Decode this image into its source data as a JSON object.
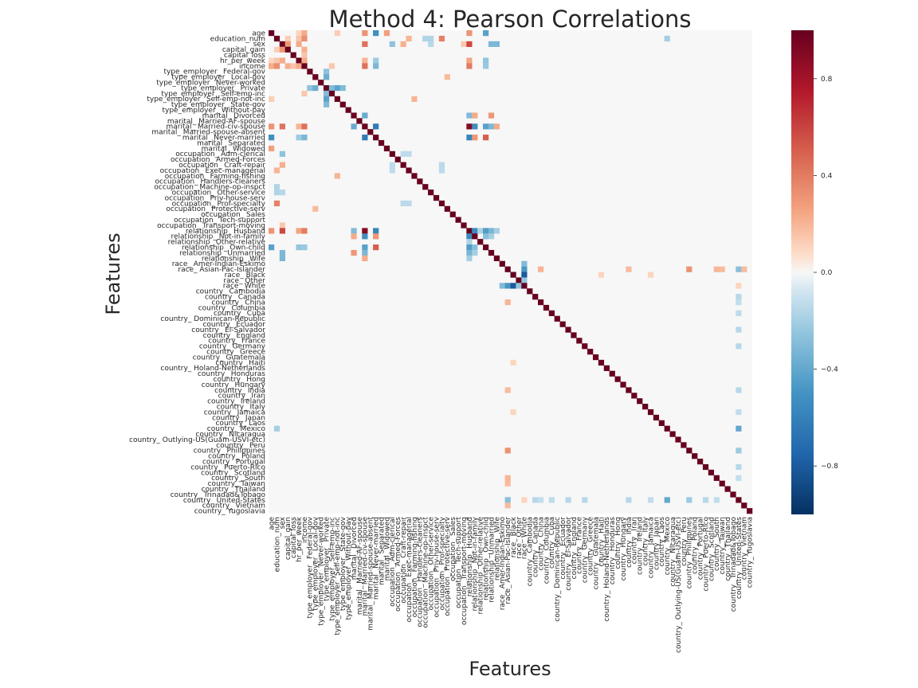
{
  "chart_data": {
    "type": "heatmap",
    "title": "Method 4: Pearson Correlations",
    "xlabel": "Features",
    "ylabel": "Features",
    "colorbar": {
      "range": [
        -1,
        1
      ],
      "ticks": [
        "0.8",
        "0.4",
        "0.0",
        "−0.4",
        "−0.8"
      ],
      "colormap": "RdBu_r",
      "colors": {
        "low": "#053061",
        "mid": "#f7f7f7",
        "high": "#67001f"
      }
    },
    "features": [
      "age",
      "education_num",
      "sex",
      "capital_gain",
      "capital_loss",
      "hr_per_week",
      "income",
      "type_employer_ Federal-gov",
      "type_employer_ Local-gov",
      "type_employer_ Never-worked",
      "type_employer_ Private",
      "type_employer_ Self-emp-inc",
      "type_employer_ Self-emp-not-inc",
      "type_employer_ State-gov",
      "type_employer_ Without-pay",
      "marital_ Divorced",
      "marital_ Married-AF-spouse",
      "marital_ Married-civ-spouse",
      "marital_ Married-spouse-absent",
      "marital_ Never-married",
      "marital_ Separated",
      "marital_ Widowed",
      "occupation_ Adm-clerical",
      "occupation_ Armed-Forces",
      "occupation_ Craft-repair",
      "occupation_ Exec-managerial",
      "occupation_ Farming-fishing",
      "occupation_ Handlers-cleaners",
      "occupation_ Machine-op-inspct",
      "occupation_ Other-service",
      "occupation_ Priv-house-serv",
      "occupation_ Prof-specialty",
      "occupation_ Protective-serv",
      "occupation_ Sales",
      "occupation_ Tech-support",
      "occupation_ Transport-moving",
      "relationship_ Husband",
      "relationship_ Not-in-family",
      "relationship_ Other-relative",
      "relationship_ Own-child",
      "relationship_ Unmarried",
      "relationship_ Wife",
      "race_ Amer-Indian-Eskimo",
      "race_ Asian-Pac-Islander",
      "race_ Black",
      "race_ Other",
      "race_ White",
      "country_ Cambodia",
      "country_ Canada",
      "country_ China",
      "country_ Columbia",
      "country_ Cuba",
      "country_ Dominican-Republic",
      "country_ Ecuador",
      "country_ El-Salvador",
      "country_ England",
      "country_ France",
      "country_ Germany",
      "country_ Greece",
      "country_ Guatemala",
      "country_ Haiti",
      "country_ Holand-Netherlands",
      "country_ Honduras",
      "country_ Hong",
      "country_ Hungary",
      "country_ India",
      "country_ Iran",
      "country_ Ireland",
      "country_ Italy",
      "country_ Jamaica",
      "country_ Japan",
      "country_ Laos",
      "country_ Mexico",
      "country_ Nicaragua",
      "country_ Outlying-US(Guam-USVI-etc)",
      "country_ Peru",
      "country_ Philippines",
      "country_ Poland",
      "country_ Portugal",
      "country_ Puerto-Rico",
      "country_ Scotland",
      "country_ South",
      "country_ Taiwan",
      "country_ Thailand",
      "country_ Trinadad&Tobago",
      "country_ United-States",
      "country_ Vietnam",
      "country_ Yugoslavia"
    ],
    "diagonal_value": 1.0,
    "notable_correlations": [
      {
        "a": "sex",
        "b": "capital_gain",
        "value": 0.3
      },
      {
        "a": "education_num",
        "b": "income",
        "value": 0.33
      },
      {
        "a": "age",
        "b": "income",
        "value": 0.23
      },
      {
        "a": "hr_per_week",
        "b": "income",
        "value": 0.23
      },
      {
        "a": "sex",
        "b": "hr_per_week",
        "value": 0.23
      },
      {
        "a": "age",
        "b": "marital_ Married-civ-spouse",
        "value": 0.31
      },
      {
        "a": "age",
        "b": "marital_ Never-married",
        "value": -0.53
      },
      {
        "a": "age",
        "b": "marital_ Widowed",
        "value": 0.27
      },
      {
        "a": "age",
        "b": "relationship_ Own-child",
        "value": -0.43
      },
      {
        "a": "sex",
        "b": "marital_ Married-civ-spouse",
        "value": 0.43
      },
      {
        "a": "sex",
        "b": "relationship_ Husband",
        "value": 0.58
      },
      {
        "a": "sex",
        "b": "relationship_ Unmarried",
        "value": -0.32
      },
      {
        "a": "sex",
        "b": "relationship_ Wife",
        "value": -0.32
      },
      {
        "a": "income",
        "b": "marital_ Married-civ-spouse",
        "value": 0.44
      },
      {
        "a": "income",
        "b": "relationship_ Husband",
        "value": 0.4
      },
      {
        "a": "income",
        "b": "marital_ Never-married",
        "value": -0.32
      },
      {
        "a": "income",
        "b": "relationship_ Own-child",
        "value": -0.23
      },
      {
        "a": "education_num",
        "b": "occupation_ Prof-specialty",
        "value": 0.38
      },
      {
        "a": "education_num",
        "b": "occupation_ Exec-managerial",
        "value": 0.2
      },
      {
        "a": "type_employer_ Private",
        "b": "type_employer_ Self-emp-not-inc",
        "value": -0.42
      },
      {
        "a": "type_employer_ Private",
        "b": "type_employer_ Local-gov",
        "value": -0.37
      },
      {
        "a": "type_employer_ Private",
        "b": "type_employer_ State-gov",
        "value": -0.3
      },
      {
        "a": "type_employer_ Private",
        "b": "type_employer_ Self-emp-inc",
        "value": -0.3
      },
      {
        "a": "type_employer_ Private",
        "b": "type_employer_ Federal-gov",
        "value": -0.26
      },
      {
        "a": "marital_ Married-civ-spouse",
        "b": "marital_ Never-married",
        "value": -0.64
      },
      {
        "a": "marital_ Married-civ-spouse",
        "b": "marital_ Divorced",
        "value": -0.38
      },
      {
        "a": "marital_ Married-civ-spouse",
        "b": "relationship_ Husband",
        "value": 0.9
      },
      {
        "a": "marital_ Married-civ-spouse",
        "b": "relationship_ Not-in-family",
        "value": -0.53
      },
      {
        "a": "marital_ Married-civ-spouse",
        "b": "relationship_ Own-child",
        "value": -0.43
      },
      {
        "a": "marital_ Married-civ-spouse",
        "b": "relationship_ Unmarried",
        "value": -0.32
      },
      {
        "a": "marital_ Married-civ-spouse",
        "b": "relationship_ Wife",
        "value": 0.23
      },
      {
        "a": "marital_ Never-married",
        "b": "relationship_ Husband",
        "value": -0.58
      },
      {
        "a": "marital_ Never-married",
        "b": "relationship_ Own-child",
        "value": 0.5
      },
      {
        "a": "marital_ Never-married",
        "b": "relationship_ Not-in-family",
        "value": 0.3
      },
      {
        "a": "marital_ Divorced",
        "b": "relationship_ Unmarried",
        "value": 0.3
      },
      {
        "a": "marital_ Divorced",
        "b": "relationship_ Not-in-family",
        "value": 0.23
      },
      {
        "a": "marital_ Divorced",
        "b": "relationship_ Husband",
        "value": -0.3
      },
      {
        "a": "relationship_ Husband",
        "b": "relationship_ Not-in-family",
        "value": -0.55
      },
      {
        "a": "relationship_ Husband",
        "b": "relationship_ Own-child",
        "value": -0.45
      },
      {
        "a": "relationship_ Husband",
        "b": "relationship_ Unmarried",
        "value": -0.33
      },
      {
        "a": "relationship_ Husband",
        "b": "relationship_ Wife",
        "value": -0.2
      },
      {
        "a": "relationship_ Husband",
        "b": "relationship_ Other-relative",
        "value": -0.18
      },
      {
        "a": "relationship_ Not-in-family",
        "b": "relationship_ Own-child",
        "value": -0.28
      },
      {
        "a": "relationship_ Not-in-family",
        "b": "relationship_ Unmarried",
        "value": -0.2
      },
      {
        "a": "race_ Black",
        "b": "race_ White",
        "value": -0.8
      },
      {
        "a": "race_ Asian-Pac-Islander",
        "b": "race_ White",
        "value": -0.48
      },
      {
        "a": "race_ Amer-Indian-Eskimo",
        "b": "race_ White",
        "value": -0.3
      },
      {
        "a": "race_ Other",
        "b": "race_ White",
        "value": -0.25
      },
      {
        "a": "race_ Asian-Pac-Islander",
        "b": "country_ Philippines",
        "value": 0.32
      },
      {
        "a": "race_ Asian-Pac-Islander",
        "b": "country_ China",
        "value": 0.2
      },
      {
        "a": "race_ Asian-Pac-Islander",
        "b": "country_ India",
        "value": 0.18
      },
      {
        "a": "race_ Asian-Pac-Islander",
        "b": "country_ South",
        "value": 0.2
      },
      {
        "a": "race_ Asian-Pac-Islander",
        "b": "country_ Vietnam",
        "value": 0.18
      },
      {
        "a": "race_ Asian-Pac-Islander",
        "b": "country_ Taiwan",
        "value": 0.18
      },
      {
        "a": "race_ Asian-Pac-Islander",
        "b": "country_ United-States",
        "value": -0.28
      },
      {
        "a": "country_ Mexico",
        "b": "country_ United-States",
        "value": -0.4
      },
      {
        "a": "country_ Philippines",
        "b": "country_ United-States",
        "value": -0.22
      },
      {
        "a": "country_ Puerto-Rico",
        "b": "country_ United-States",
        "value": -0.15
      },
      {
        "a": "country_ Canada",
        "b": "country_ United-States",
        "value": -0.15
      },
      {
        "a": "country_ Germany",
        "b": "country_ United-States",
        "value": -0.15
      },
      {
        "a": "country_ El-Salvador",
        "b": "country_ United-States",
        "value": -0.15
      },
      {
        "a": "country_ India",
        "b": "country_ United-States",
        "value": -0.15
      },
      {
        "a": "country_ Cuba",
        "b": "country_ United-States",
        "value": -0.13
      },
      {
        "a": "country_ South",
        "b": "country_ United-States",
        "value": -0.12
      },
      {
        "a": "country_ Jamaica",
        "b": "country_ United-States",
        "value": -0.12
      },
      {
        "a": "country_ China",
        "b": "country_ United-States",
        "value": -0.12
      },
      {
        "a": "race_ White",
        "b": "country_ United-States",
        "value": 0.1
      },
      {
        "a": "race_ Black",
        "b": "country_ Jamaica",
        "value": 0.1
      },
      {
        "a": "race_ Black",
        "b": "country_ Haiti",
        "value": 0.1
      },
      {
        "a": "occupation_ Craft-repair",
        "b": "occupation_ Prof-specialty",
        "value": -0.14
      },
      {
        "a": "occupation_ Exec-managerial",
        "b": "occupation_ Prof-specialty",
        "value": -0.14
      },
      {
        "a": "occupation_ Adm-clerical",
        "b": "occupation_ Craft-repair",
        "value": -0.13
      },
      {
        "a": "occupation_ Adm-clerical",
        "b": "occupation_ Exec-managerial",
        "value": -0.13
      },
      {
        "a": "type_employer_ Local-gov",
        "b": "occupation_ Protective-serv",
        "value": 0.18
      },
      {
        "a": "type_employer_ Self-emp-not-inc",
        "b": "occupation_ Farming-fishing",
        "value": 0.2
      },
      {
        "a": "type_employer_ Self-emp-inc",
        "b": "income",
        "value": 0.14
      },
      {
        "a": "capital_gain",
        "b": "income",
        "value": 0.22
      },
      {
        "a": "capital_loss",
        "b": "income",
        "value": 0.15
      },
      {
        "a": "education_num",
        "b": "capital_gain",
        "value": 0.12
      },
      {
        "a": "sex",
        "b": "occupation_ Adm-clerical",
        "value": -0.26
      },
      {
        "a": "sex",
        "b": "occupation_ Craft-repair",
        "value": 0.22
      },
      {
        "a": "sex",
        "b": "occupation_ Transport-moving",
        "value": 0.14
      },
      {
        "a": "sex",
        "b": "occupation_ Other-service",
        "value": -0.15
      },
      {
        "a": "age",
        "b": "hr_per_week",
        "value": 0.1
      },
      {
        "a": "education_num",
        "b": "hr_per_week",
        "value": 0.15
      },
      {
        "a": "age",
        "b": "type_employer_ Self-emp-not-inc",
        "value": 0.12
      },
      {
        "a": "hr_per_week",
        "b": "marital_ Married-civ-spouse",
        "value": 0.2
      },
      {
        "a": "hr_per_week",
        "b": "marital_ Never-married",
        "value": -0.22
      },
      {
        "a": "hr_per_week",
        "b": "relationship_ Own-child",
        "value": -0.25
      },
      {
        "a": "education_num",
        "b": "occupation_ Other-service",
        "value": -0.17
      },
      {
        "a": "education_num",
        "b": "country_ Mexico",
        "value": -0.2
      },
      {
        "a": "education_num",
        "b": "occupation_ Machine-op-inspct",
        "value": -0.17
      },
      {
        "a": "age",
        "b": "relationship_ Husband",
        "value": 0.31
      },
      {
        "a": "hr_per_week",
        "b": "relationship_ Husband",
        "value": 0.25
      }
    ]
  }
}
